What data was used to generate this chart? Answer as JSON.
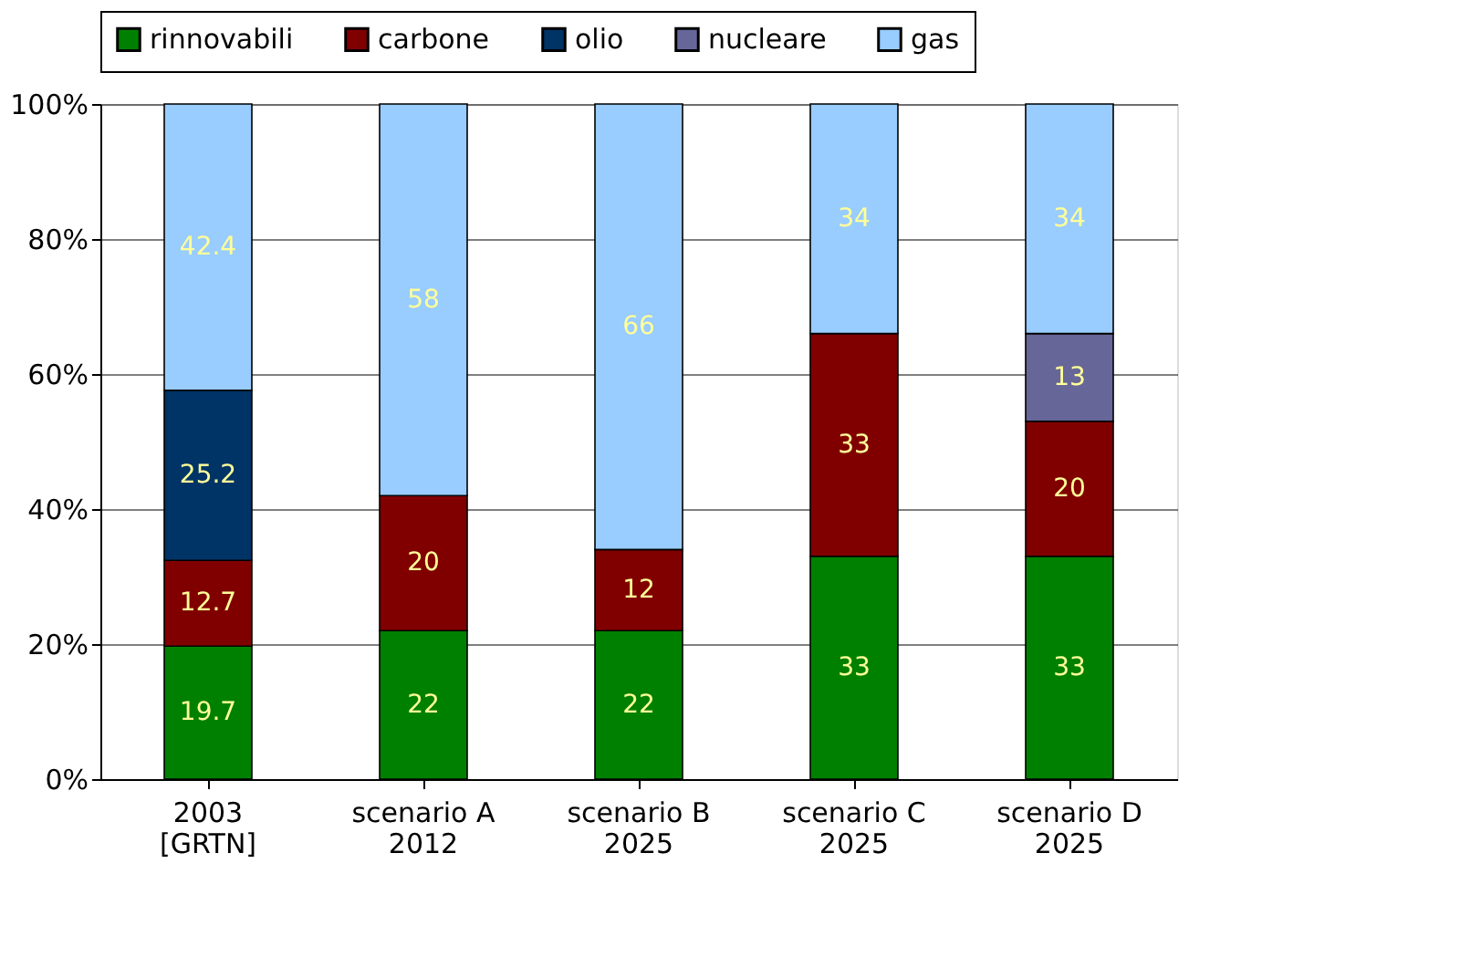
{
  "chart_data": {
    "type": "bar",
    "stacked": true,
    "categories": [
      "2003\n[GRTN]",
      "scenario A\n2012",
      "scenario B\n2025",
      "scenario C\n2025",
      "scenario D\n2025"
    ],
    "series": [
      {
        "name": "rinnovabili",
        "color": "#008000",
        "values": [
          19.7,
          22,
          22,
          33,
          33
        ]
      },
      {
        "name": "carbone",
        "color": "#800000",
        "values": [
          12.7,
          20,
          12,
          33,
          20
        ]
      },
      {
        "name": "olio",
        "color": "#003366",
        "values": [
          25.2,
          null,
          null,
          null,
          null
        ]
      },
      {
        "name": "nucleare",
        "color": "#666699",
        "values": [
          null,
          null,
          null,
          null,
          13
        ]
      },
      {
        "name": "gas",
        "color": "#99ccff",
        "values": [
          42.4,
          58,
          66,
          34,
          34
        ]
      }
    ],
    "ylim": [
      0,
      100
    ],
    "yticks": [
      {
        "value": 0,
        "label": "0%"
      },
      {
        "value": 20,
        "label": "20%"
      },
      {
        "value": 40,
        "label": "40%"
      },
      {
        "value": 60,
        "label": "60%"
      },
      {
        "value": 80,
        "label": "80%"
      },
      {
        "value": 100,
        "label": "100%"
      }
    ],
    "grid": "y",
    "legend": "top",
    "data_labels": true
  }
}
